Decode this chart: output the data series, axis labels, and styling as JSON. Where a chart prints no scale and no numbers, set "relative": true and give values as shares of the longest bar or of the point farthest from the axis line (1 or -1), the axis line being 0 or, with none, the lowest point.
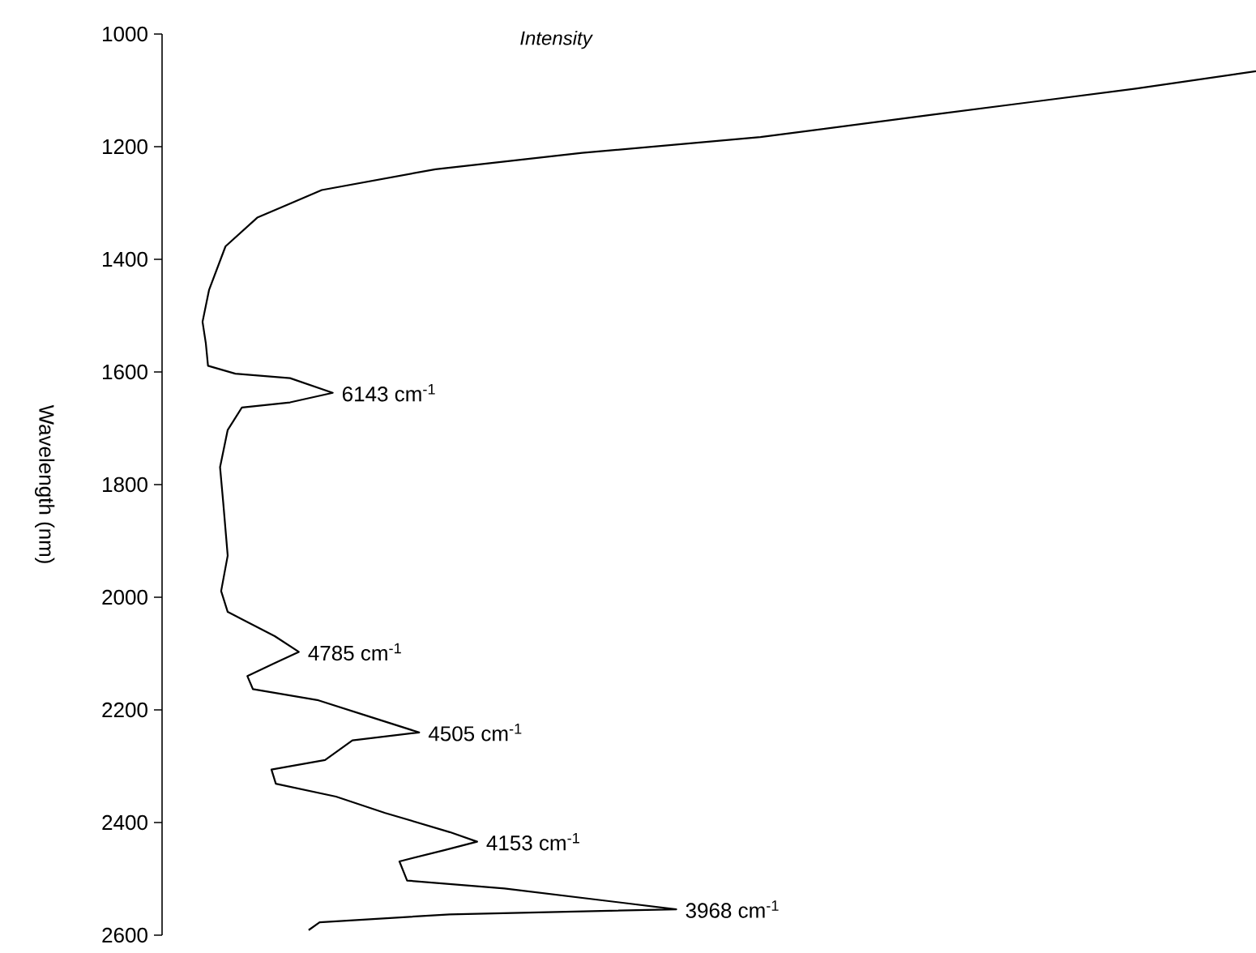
{
  "chart_data": {
    "type": "line",
    "orientation": "horizontal",
    "relative": true,
    "color": "#000000",
    "xlabel": "Intensity",
    "ylabel": "Wavelength (nm)",
    "ylim": [
      2600,
      1000
    ],
    "yticks": [
      1000,
      1200,
      1400,
      1600,
      1800,
      2000,
      2200,
      2400,
      2600
    ],
    "x": [
      1066,
      1097,
      1143,
      1183,
      1211,
      1240,
      1277,
      1326,
      1377,
      1454,
      1511,
      1549,
      1589,
      1603,
      1611,
      1637,
      1654,
      1663,
      1703,
      1769,
      1834,
      1926,
      1989,
      2026,
      2046,
      2069,
      2097,
      2117,
      2140,
      2163,
      2183,
      2211,
      2240,
      2254,
      2289,
      2306,
      2331,
      2354,
      2383,
      2417,
      2434,
      2449,
      2469,
      2503,
      2517,
      2554,
      2563,
      2577,
      2591
    ],
    "values": [
      1.0,
      0.89,
      0.705,
      0.547,
      0.384,
      0.25,
      0.146,
      0.087,
      0.058,
      0.043,
      0.037,
      0.04,
      0.042,
      0.067,
      0.117,
      0.156,
      0.117,
      0.073,
      0.06,
      0.053,
      0.056,
      0.06,
      0.054,
      0.06,
      0.08,
      0.103,
      0.125,
      0.103,
      0.078,
      0.083,
      0.143,
      0.188,
      0.235,
      0.174,
      0.149,
      0.1,
      0.104,
      0.159,
      0.204,
      0.263,
      0.288,
      0.258,
      0.217,
      0.224,
      0.313,
      0.47,
      0.263,
      0.144,
      0.134
    ],
    "annotations": [
      {
        "text": "6143 cm$^{-1}$",
        "x": 0.156,
        "y": 1637
      },
      {
        "text": "4785 cm$^{-1}$",
        "x": 0.125,
        "y": 2097
      },
      {
        "text": "4505 cm$^{-1}$",
        "x": 0.235,
        "y": 2240
      },
      {
        "text": "4153 cm$^{-1}$",
        "x": 0.288,
        "y": 2434
      },
      {
        "text": "3968 cm$^{-1}$",
        "x": 0.47,
        "y": 2554
      }
    ]
  }
}
